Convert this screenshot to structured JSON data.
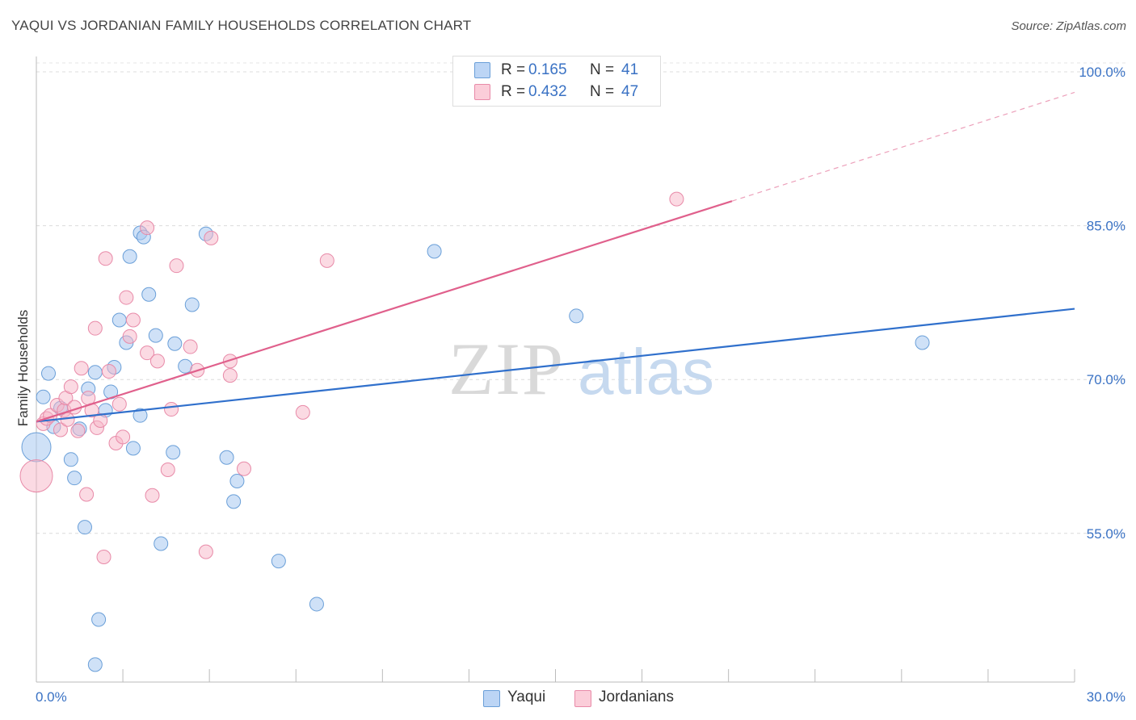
{
  "header": {
    "title": "YAQUI VS JORDANIAN FAMILY HOUSEHOLDS CORRELATION CHART",
    "source": "Source: ZipAtlas.com"
  },
  "watermark": {
    "zip": "ZIP",
    "atlas": "atlas"
  },
  "legend": {
    "rows": [
      {
        "r_label": "R =",
        "r_value": "0.165",
        "n_label": "N =",
        "n_value": "41",
        "color": "#a8c8f0"
      },
      {
        "r_label": "R =",
        "r_value": "0.432",
        "n_label": "N =",
        "n_value": "47",
        "color": "#f7b6c8"
      }
    ]
  },
  "bottom_legend": {
    "series1": "Yaqui",
    "series2": "Jordanians"
  },
  "colors": {
    "yaqui_fill": "#a8c8f0",
    "yaqui_stroke": "#6a9fd8",
    "yaqui_line": "#3070cc",
    "jord_fill": "#f7b6c8",
    "jord_stroke": "#e88aa8",
    "jord_line": "#e0608c",
    "axis_text": "#3a72c4"
  },
  "chart_data": {
    "type": "scatter",
    "title": "YAQUI VS JORDANIAN FAMILY HOUSEHOLDS CORRELATION CHART",
    "xlabel": "",
    "ylabel": "Family Households",
    "xlim": [
      0,
      30
    ],
    "ylim": [
      40.5,
      101.5
    ],
    "x_tick_labels": [
      "0.0%",
      "30.0%"
    ],
    "y_ticks": [
      55,
      70,
      85,
      100
    ],
    "y_tick_labels": [
      "55.0%",
      "70.0%",
      "85.0%",
      "100.0%"
    ],
    "grid": true,
    "legend_position": "top-center",
    "series": [
      {
        "name": "Yaqui",
        "r": 0.165,
        "n": 41,
        "trend": {
          "x": [
            0.0,
            30.0
          ],
          "y": [
            65.9,
            76.9
          ]
        },
        "points": [
          {
            "x": 0.0,
            "y": 63.4,
            "big": true
          },
          {
            "x": 0.2,
            "y": 68.3
          },
          {
            "x": 0.35,
            "y": 70.6
          },
          {
            "x": 0.5,
            "y": 65.4
          },
          {
            "x": 0.7,
            "y": 67.2
          },
          {
            "x": 1.0,
            "y": 62.2
          },
          {
            "x": 1.1,
            "y": 60.4
          },
          {
            "x": 1.25,
            "y": 65.2
          },
          {
            "x": 1.4,
            "y": 55.6
          },
          {
            "x": 1.5,
            "y": 69.1
          },
          {
            "x": 1.7,
            "y": 70.7
          },
          {
            "x": 1.8,
            "y": 46.6
          },
          {
            "x": 1.7,
            "y": 42.2
          },
          {
            "x": 2.0,
            "y": 67.0
          },
          {
            "x": 2.15,
            "y": 68.8
          },
          {
            "x": 2.25,
            "y": 71.2
          },
          {
            "x": 2.4,
            "y": 75.8
          },
          {
            "x": 2.6,
            "y": 73.6
          },
          {
            "x": 2.7,
            "y": 82.0
          },
          {
            "x": 2.8,
            "y": 63.3
          },
          {
            "x": 3.0,
            "y": 66.5
          },
          {
            "x": 3.0,
            "y": 84.3
          },
          {
            "x": 3.1,
            "y": 83.9
          },
          {
            "x": 3.25,
            "y": 78.3
          },
          {
            "x": 3.45,
            "y": 74.3
          },
          {
            "x": 3.6,
            "y": 54.0
          },
          {
            "x": 3.95,
            "y": 62.9
          },
          {
            "x": 4.0,
            "y": 73.5
          },
          {
            "x": 4.3,
            "y": 71.3
          },
          {
            "x": 4.5,
            "y": 77.3
          },
          {
            "x": 4.9,
            "y": 84.2
          },
          {
            "x": 5.5,
            "y": 62.4
          },
          {
            "x": 5.7,
            "y": 58.1
          },
          {
            "x": 5.8,
            "y": 60.1
          },
          {
            "x": 7.0,
            "y": 52.3
          },
          {
            "x": 8.1,
            "y": 48.1
          },
          {
            "x": 11.5,
            "y": 82.5
          },
          {
            "x": 15.6,
            "y": 76.2
          },
          {
            "x": 25.6,
            "y": 73.6
          }
        ]
      },
      {
        "name": "Jordanians",
        "r": 0.432,
        "n": 47,
        "trend": {
          "x": [
            0.0,
            20.1
          ],
          "y": [
            65.9,
            87.4
          ]
        },
        "trend_extension": {
          "x": [
            20.1,
            30.0
          ],
          "y": [
            87.4,
            98.0
          ]
        },
        "points": [
          {
            "x": 0.0,
            "y": 60.6,
            "big": true
          },
          {
            "x": 0.2,
            "y": 65.7
          },
          {
            "x": 0.3,
            "y": 66.2
          },
          {
            "x": 0.4,
            "y": 66.5
          },
          {
            "x": 0.6,
            "y": 67.5
          },
          {
            "x": 0.7,
            "y": 65.1
          },
          {
            "x": 0.8,
            "y": 67.0
          },
          {
            "x": 0.85,
            "y": 68.2
          },
          {
            "x": 0.9,
            "y": 66.1
          },
          {
            "x": 1.0,
            "y": 69.3
          },
          {
            "x": 1.1,
            "y": 67.3
          },
          {
            "x": 1.2,
            "y": 65.0
          },
          {
            "x": 1.3,
            "y": 71.1
          },
          {
            "x": 1.45,
            "y": 58.8
          },
          {
            "x": 1.5,
            "y": 68.2
          },
          {
            "x": 1.6,
            "y": 67.0
          },
          {
            "x": 1.7,
            "y": 75.0
          },
          {
            "x": 1.75,
            "y": 65.3
          },
          {
            "x": 1.85,
            "y": 66.0
          },
          {
            "x": 1.95,
            "y": 52.7
          },
          {
            "x": 2.0,
            "y": 81.8
          },
          {
            "x": 2.1,
            "y": 70.8
          },
          {
            "x": 2.3,
            "y": 63.8
          },
          {
            "x": 2.4,
            "y": 67.6
          },
          {
            "x": 2.5,
            "y": 64.4
          },
          {
            "x": 2.6,
            "y": 78.0
          },
          {
            "x": 2.7,
            "y": 74.2
          },
          {
            "x": 2.8,
            "y": 75.8
          },
          {
            "x": 3.2,
            "y": 72.6
          },
          {
            "x": 3.2,
            "y": 84.8
          },
          {
            "x": 3.35,
            "y": 58.7
          },
          {
            "x": 3.5,
            "y": 71.8
          },
          {
            "x": 3.8,
            "y": 61.2
          },
          {
            "x": 3.9,
            "y": 67.1
          },
          {
            "x": 4.05,
            "y": 81.1
          },
          {
            "x": 4.45,
            "y": 73.2
          },
          {
            "x": 4.65,
            "y": 70.9
          },
          {
            "x": 4.9,
            "y": 53.2
          },
          {
            "x": 5.05,
            "y": 83.8
          },
          {
            "x": 5.6,
            "y": 71.8
          },
          {
            "x": 5.6,
            "y": 70.4
          },
          {
            "x": 6.0,
            "y": 61.3
          },
          {
            "x": 7.7,
            "y": 66.8
          },
          {
            "x": 8.4,
            "y": 81.6
          },
          {
            "x": 18.5,
            "y": 87.6
          }
        ]
      }
    ]
  }
}
